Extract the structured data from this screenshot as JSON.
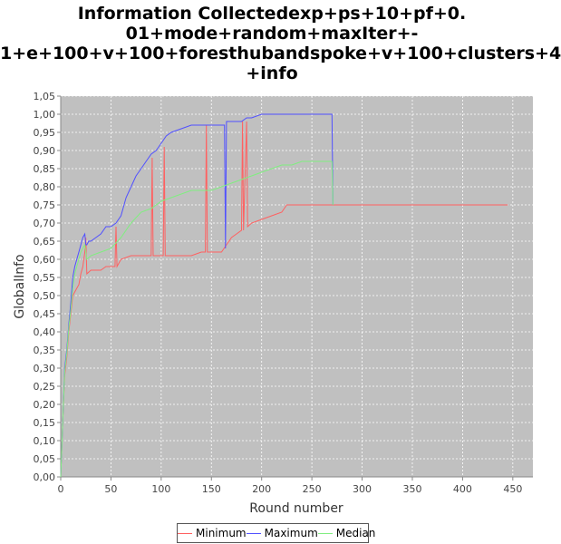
{
  "chart_data": {
    "type": "line",
    "title_lines": [
      "Information Collectedexp+ps+10+pf+0.",
      "01+mode+random+maxIter+-",
      "1+e+100+v+100+foresthubandspoke+v+100+clusters+4",
      "+info"
    ],
    "xlabel": "Round number",
    "ylabel": "GlobalInfo",
    "xlim": [
      0,
      470
    ],
    "ylim": [
      0,
      1.05
    ],
    "x_ticks": [
      0,
      50,
      100,
      150,
      200,
      250,
      300,
      350,
      400,
      450
    ],
    "y_ticks": [
      "0,00",
      "0,05",
      "0,10",
      "0,15",
      "0,20",
      "0,25",
      "0,30",
      "0,35",
      "0,40",
      "0,45",
      "0,50",
      "0,55",
      "0,60",
      "0,65",
      "0,70",
      "0,75",
      "0,80",
      "0,85",
      "0,90",
      "0,95",
      "1,00",
      "1,05"
    ],
    "grid": true,
    "background": "#c0c0c0",
    "legend_position": "bottom",
    "series": [
      {
        "name": "Minimum",
        "color": "#ff6060",
        "points": [
          [
            0,
            0
          ],
          [
            2,
            0.15
          ],
          [
            4,
            0.28
          ],
          [
            6,
            0.33
          ],
          [
            8,
            0.4
          ],
          [
            10,
            0.45
          ],
          [
            12,
            0.5
          ],
          [
            14,
            0.51
          ],
          [
            16,
            0.52
          ],
          [
            18,
            0.53
          ],
          [
            20,
            0.56
          ],
          [
            22,
            0.58
          ],
          [
            24,
            0.62
          ],
          [
            25,
            0.66
          ],
          [
            26,
            0.56
          ],
          [
            30,
            0.57
          ],
          [
            40,
            0.57
          ],
          [
            45,
            0.58
          ],
          [
            54,
            0.58
          ],
          [
            55,
            0.69
          ],
          [
            56,
            0.58
          ],
          [
            60,
            0.6
          ],
          [
            70,
            0.61
          ],
          [
            80,
            0.61
          ],
          [
            90,
            0.61
          ],
          [
            91,
            0.88
          ],
          [
            92,
            0.61
          ],
          [
            95,
            0.61
          ],
          [
            98,
            0.61
          ],
          [
            100,
            0.61
          ],
          [
            102,
            0.61
          ],
          [
            103,
            0.91
          ],
          [
            104,
            0.61
          ],
          [
            110,
            0.61
          ],
          [
            120,
            0.61
          ],
          [
            130,
            0.61
          ],
          [
            140,
            0.62
          ],
          [
            144,
            0.62
          ],
          [
            145,
            0.97
          ],
          [
            146,
            0.62
          ],
          [
            150,
            0.62
          ],
          [
            160,
            0.62
          ],
          [
            165,
            0.64
          ],
          [
            170,
            0.66
          ],
          [
            175,
            0.67
          ],
          [
            180,
            0.68
          ],
          [
            181,
            0.98
          ],
          [
            182,
            0.68
          ],
          [
            185,
            0.98
          ],
          [
            186,
            0.69
          ],
          [
            190,
            0.7
          ],
          [
            200,
            0.71
          ],
          [
            210,
            0.72
          ],
          [
            220,
            0.73
          ],
          [
            225,
            0.75
          ],
          [
            250,
            0.75
          ],
          [
            270,
            0.75
          ],
          [
            300,
            0.75
          ],
          [
            350,
            0.75
          ],
          [
            400,
            0.75
          ],
          [
            445,
            0.75
          ]
        ]
      },
      {
        "name": "Maximum",
        "color": "#5050ff",
        "points": [
          [
            0,
            0
          ],
          [
            2,
            0.15
          ],
          [
            4,
            0.3
          ],
          [
            6,
            0.35
          ],
          [
            8,
            0.42
          ],
          [
            10,
            0.48
          ],
          [
            12,
            0.55
          ],
          [
            14,
            0.58
          ],
          [
            16,
            0.6
          ],
          [
            18,
            0.62
          ],
          [
            20,
            0.64
          ],
          [
            22,
            0.66
          ],
          [
            24,
            0.67
          ],
          [
            25,
            0.64
          ],
          [
            26,
            0.64
          ],
          [
            28,
            0.65
          ],
          [
            30,
            0.65
          ],
          [
            35,
            0.66
          ],
          [
            40,
            0.67
          ],
          [
            45,
            0.69
          ],
          [
            50,
            0.69
          ],
          [
            55,
            0.7
          ],
          [
            60,
            0.72
          ],
          [
            65,
            0.77
          ],
          [
            70,
            0.8
          ],
          [
            75,
            0.83
          ],
          [
            80,
            0.85
          ],
          [
            85,
            0.87
          ],
          [
            90,
            0.89
          ],
          [
            95,
            0.9
          ],
          [
            100,
            0.92
          ],
          [
            105,
            0.94
          ],
          [
            110,
            0.95
          ],
          [
            120,
            0.96
          ],
          [
            130,
            0.97
          ],
          [
            140,
            0.97
          ],
          [
            150,
            0.97
          ],
          [
            160,
            0.97
          ],
          [
            163,
            0.97
          ],
          [
            164,
            0.63
          ],
          [
            165,
            0.98
          ],
          [
            170,
            0.98
          ],
          [
            180,
            0.98
          ],
          [
            185,
            0.99
          ],
          [
            190,
            0.99
          ],
          [
            200,
            1.0
          ],
          [
            250,
            1.0
          ],
          [
            270,
            1.0
          ],
          [
            271,
            0.75
          ]
        ]
      },
      {
        "name": "Median",
        "color": "#80ee80",
        "points": [
          [
            0,
            0
          ],
          [
            2,
            0.15
          ],
          [
            4,
            0.29
          ],
          [
            6,
            0.34
          ],
          [
            8,
            0.41
          ],
          [
            10,
            0.46
          ],
          [
            12,
            0.52
          ],
          [
            14,
            0.56
          ],
          [
            16,
            0.58
          ],
          [
            18,
            0.6
          ],
          [
            20,
            0.62
          ],
          [
            22,
            0.63
          ],
          [
            24,
            0.64
          ],
          [
            26,
            0.6
          ],
          [
            30,
            0.61
          ],
          [
            40,
            0.62
          ],
          [
            50,
            0.63
          ],
          [
            60,
            0.66
          ],
          [
            70,
            0.7
          ],
          [
            80,
            0.73
          ],
          [
            90,
            0.74
          ],
          [
            100,
            0.76
          ],
          [
            110,
            0.77
          ],
          [
            120,
            0.78
          ],
          [
            130,
            0.79
          ],
          [
            140,
            0.79
          ],
          [
            150,
            0.79
          ],
          [
            160,
            0.8
          ],
          [
            170,
            0.81
          ],
          [
            180,
            0.82
          ],
          [
            190,
            0.83
          ],
          [
            200,
            0.84
          ],
          [
            210,
            0.85
          ],
          [
            220,
            0.86
          ],
          [
            230,
            0.86
          ],
          [
            240,
            0.87
          ],
          [
            250,
            0.87
          ],
          [
            260,
            0.87
          ],
          [
            270,
            0.87
          ],
          [
            271,
            0.75
          ]
        ]
      }
    ]
  }
}
